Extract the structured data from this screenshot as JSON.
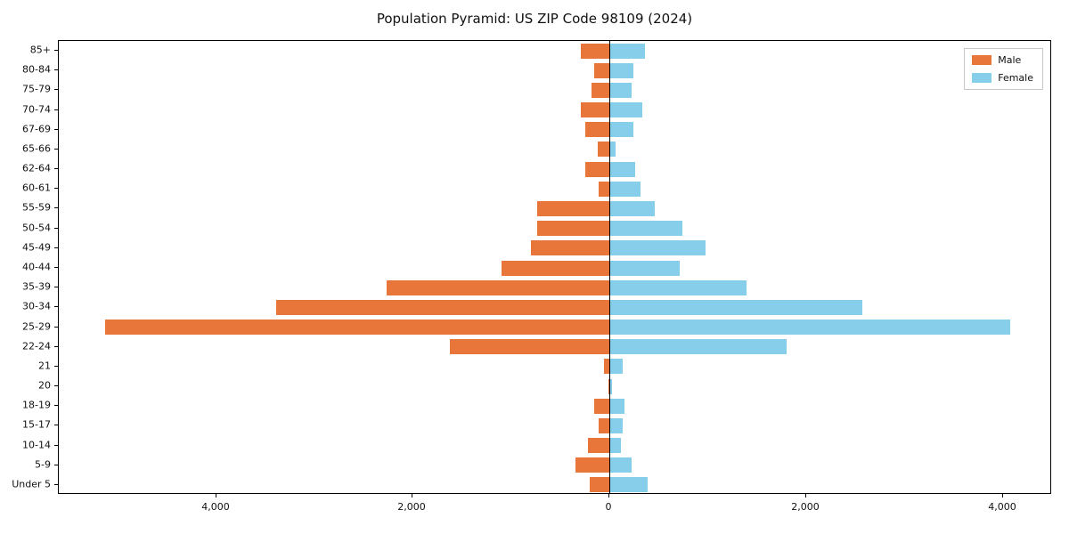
{
  "chart_data": {
    "type": "bar",
    "subtype": "population-pyramid",
    "title": "Population Pyramid: US ZIP Code 98109 (2024)",
    "categories_top_to_bottom": [
      "85+",
      "80-84",
      "75-79",
      "70-74",
      "67-69",
      "65-66",
      "62-64",
      "60-61",
      "55-59",
      "50-54",
      "45-49",
      "40-44",
      "35-39",
      "30-34",
      "25-29",
      "22-24",
      "21",
      "20",
      "18-19",
      "15-17",
      "10-14",
      "5-9",
      "Under 5"
    ],
    "series": [
      {
        "name": "Male",
        "side": "left",
        "color": "#e8763b",
        "values": [
          290,
          160,
          180,
          290,
          245,
          120,
          250,
          110,
          740,
          740,
          795,
          1100,
          2270,
          3390,
          5130,
          1620,
          60,
          15,
          160,
          110,
          215,
          350,
          200
        ]
      },
      {
        "name": "Female",
        "side": "right",
        "color": "#87ceeb",
        "values": [
          355,
          235,
          215,
          325,
          235,
          55,
          250,
          310,
          450,
          730,
          970,
          705,
          1385,
          2560,
          4065,
          1790,
          125,
          20,
          145,
          125,
          110,
          215,
          380
        ]
      }
    ],
    "xlim": [
      -5600,
      4500
    ],
    "xticks": [
      {
        "value": -4000,
        "label": "4,000"
      },
      {
        "value": -2000,
        "label": "2,000"
      },
      {
        "value": 0,
        "label": "0"
      },
      {
        "value": 2000,
        "label": "2,000"
      },
      {
        "value": 4000,
        "label": "4,000"
      }
    ],
    "grid": false,
    "legend_position": "top-right"
  }
}
